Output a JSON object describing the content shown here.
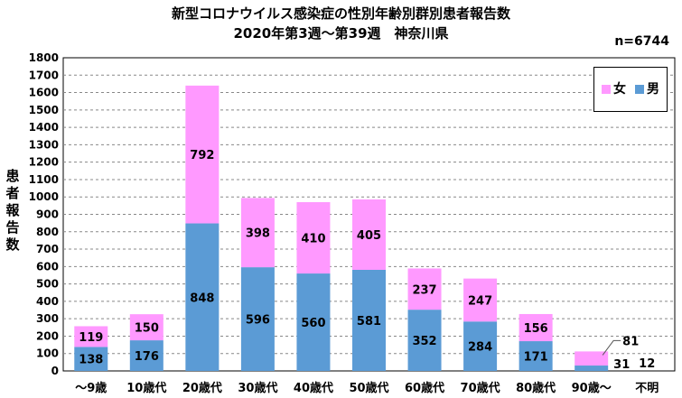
{
  "header": {
    "title": "新型コロナウイルス感染症の性別年齢別群別患者報告数",
    "subtitle": "2020年第3週〜第39週　神奈川県",
    "n_label": "n=6744"
  },
  "chart_data": {
    "type": "bar",
    "stacked": true,
    "categories": [
      "〜9歳",
      "10歳代",
      "20歳代",
      "30歳代",
      "40歳代",
      "50歳代",
      "60歳代",
      "70歳代",
      "80歳代",
      "90歳〜",
      "不明"
    ],
    "series": [
      {
        "name": "男",
        "color": "#5b9bd5",
        "values": [
          138,
          176,
          848,
          596,
          560,
          581,
          352,
          284,
          171,
          31,
          0
        ]
      },
      {
        "name": "女",
        "color": "#ff99ff",
        "values": [
          119,
          150,
          792,
          398,
          410,
          405,
          237,
          247,
          156,
          81,
          0
        ]
      }
    ],
    "unknown_label": "12",
    "ylabel": "患者報告数",
    "ylim": [
      0,
      1800
    ],
    "ytick_step": 100,
    "grid": true,
    "legend_position": "top-right"
  }
}
